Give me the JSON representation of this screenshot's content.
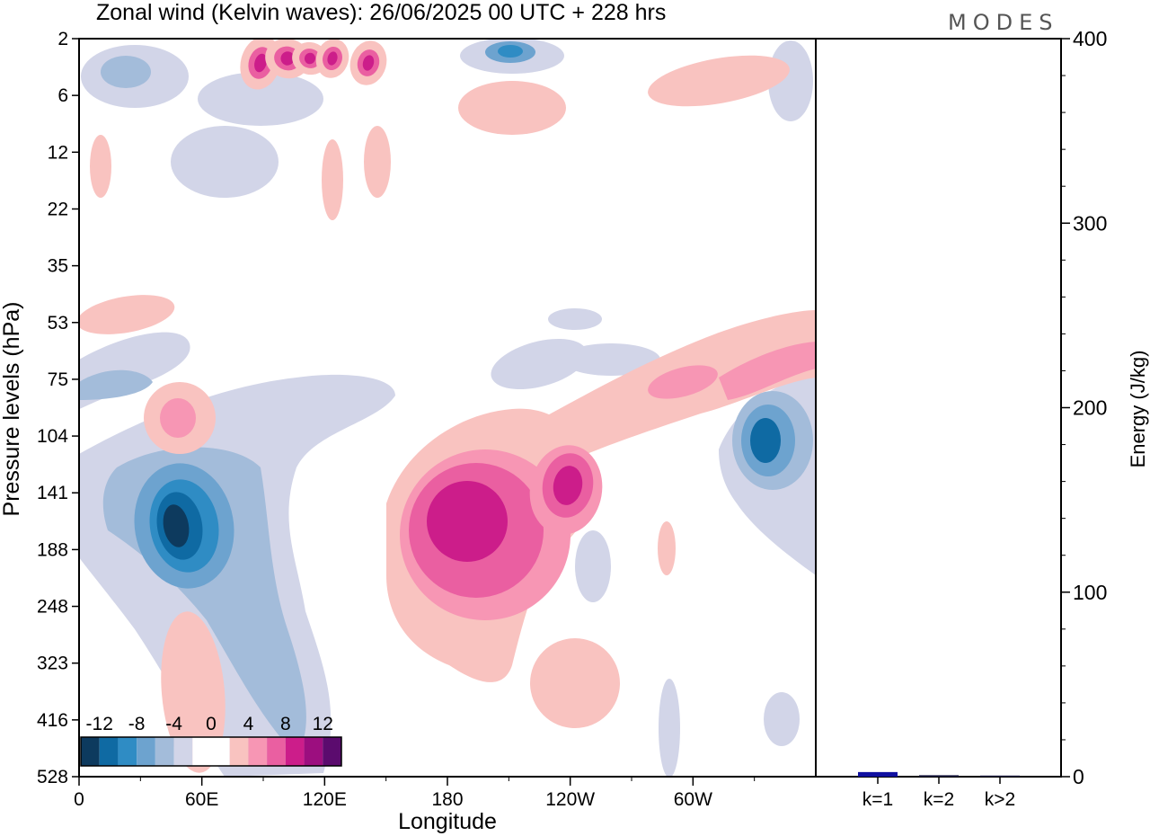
{
  "chart_data": [
    {
      "type": "heatmap",
      "title": "Zonal wind (Kelvin waves):  26/06/2025  00 UTC  + 228 hrs",
      "xlabel": "Longitude",
      "ylabel": "Pressure levels (hPa)",
      "x_ticks": [
        "0",
        "60E",
        "120E",
        "180",
        "120W",
        "60W"
      ],
      "x_tick_degrees": [
        0,
        60,
        120,
        180,
        240,
        300
      ],
      "xlim": [
        0,
        360
      ],
      "y_ticks": [
        "2",
        "6",
        "12",
        "22",
        "35",
        "53",
        "75",
        "104",
        "141",
        "188",
        "248",
        "323",
        "416",
        "528"
      ],
      "colorbar": {
        "labels": [
          "-12",
          "-8",
          "-4",
          "0",
          "4",
          "8",
          "12"
        ],
        "colors": [
          "#0d3a5e",
          "#0f6aa3",
          "#2f8cc4",
          "#6da3cf",
          "#a3bcda",
          "#d2d5e8",
          "#ffffff",
          "#ffffff",
          "#f9c3c0",
          "#f796b4",
          "#ea5fa1",
          "#cc1d8a",
          "#9c0e7f",
          "#5b0b6e"
        ]
      },
      "features": [
        {
          "sign": "negative",
          "peak": -12,
          "lon": 45,
          "level": 160
        },
        {
          "sign": "negative",
          "peak": -9,
          "lon": 330,
          "level": 115
        },
        {
          "sign": "negative",
          "peak": -6,
          "lon": 210,
          "level": 3
        },
        {
          "sign": "positive",
          "peak": 12,
          "lon": 190,
          "level": 155
        },
        {
          "sign": "positive",
          "peak": 9,
          "lon": 230,
          "level": 140
        },
        {
          "sign": "positive",
          "peak": 8,
          "lon": 45,
          "level": 100
        },
        {
          "sign": "positive",
          "peak": 8,
          "lon": 115,
          "level": 3
        }
      ]
    },
    {
      "type": "bar",
      "title": "",
      "xlabel": "",
      "ylabel": "Energy (J/kg)",
      "categories": [
        "k=1",
        "k=2",
        "k>2"
      ],
      "values": [
        2.5,
        0.8,
        0.6
      ],
      "ylim": [
        0,
        400
      ],
      "y_ticks": [
        "0",
        "100",
        "200",
        "300",
        "400"
      ],
      "bar_colors": [
        "#1010a0",
        "#1a1a40",
        "#1a1a40"
      ]
    }
  ],
  "brand": "MODES"
}
